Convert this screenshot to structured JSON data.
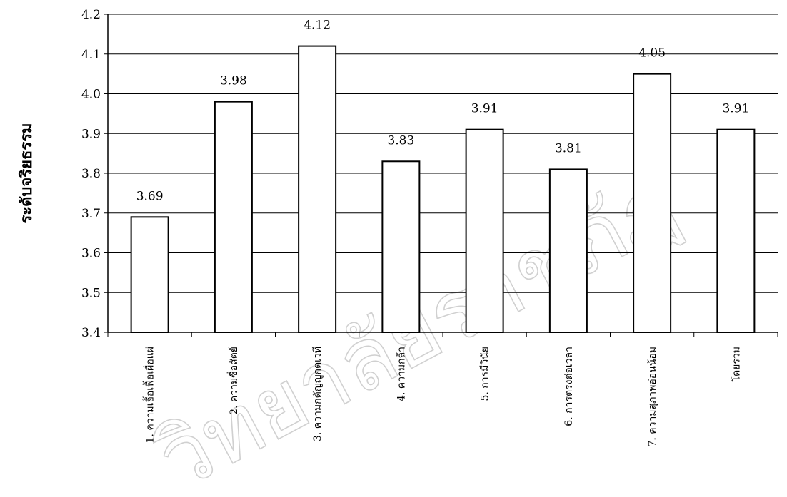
{
  "chart_data": {
    "type": "bar",
    "ylabel": "ระดับจริยธรรม",
    "xlabel": "",
    "ylim": [
      3.4,
      4.2
    ],
    "yticks": [
      "3.4",
      "3.5",
      "3.6",
      "3.7",
      "3.8",
      "3.9",
      "4.0",
      "4.1",
      "4.2"
    ],
    "categories": [
      "1. ความเอื้อเฟื้อเผื่อแผ่",
      "2. ความซื่อสัตย์",
      "3. ความกตัญญูกตเวที",
      "4. ความกล้า",
      "5. การมีวินัย",
      "6. การตรงต่อเวลา",
      "7. ความสุภาพอ่อนน้อม",
      "โดยรวม"
    ],
    "values": [
      3.69,
      3.98,
      4.12,
      3.83,
      3.91,
      3.81,
      4.05,
      3.91
    ],
    "data_labels": [
      "3.69",
      "3.98",
      "4.12",
      "3.83",
      "3.91",
      "3.81",
      "4.05",
      "3.91"
    ],
    "grid": true,
    "bar_fill": "#ffffff",
    "bar_stroke": "#000000"
  },
  "watermark": "วิทยาลัยราชภัฏ"
}
